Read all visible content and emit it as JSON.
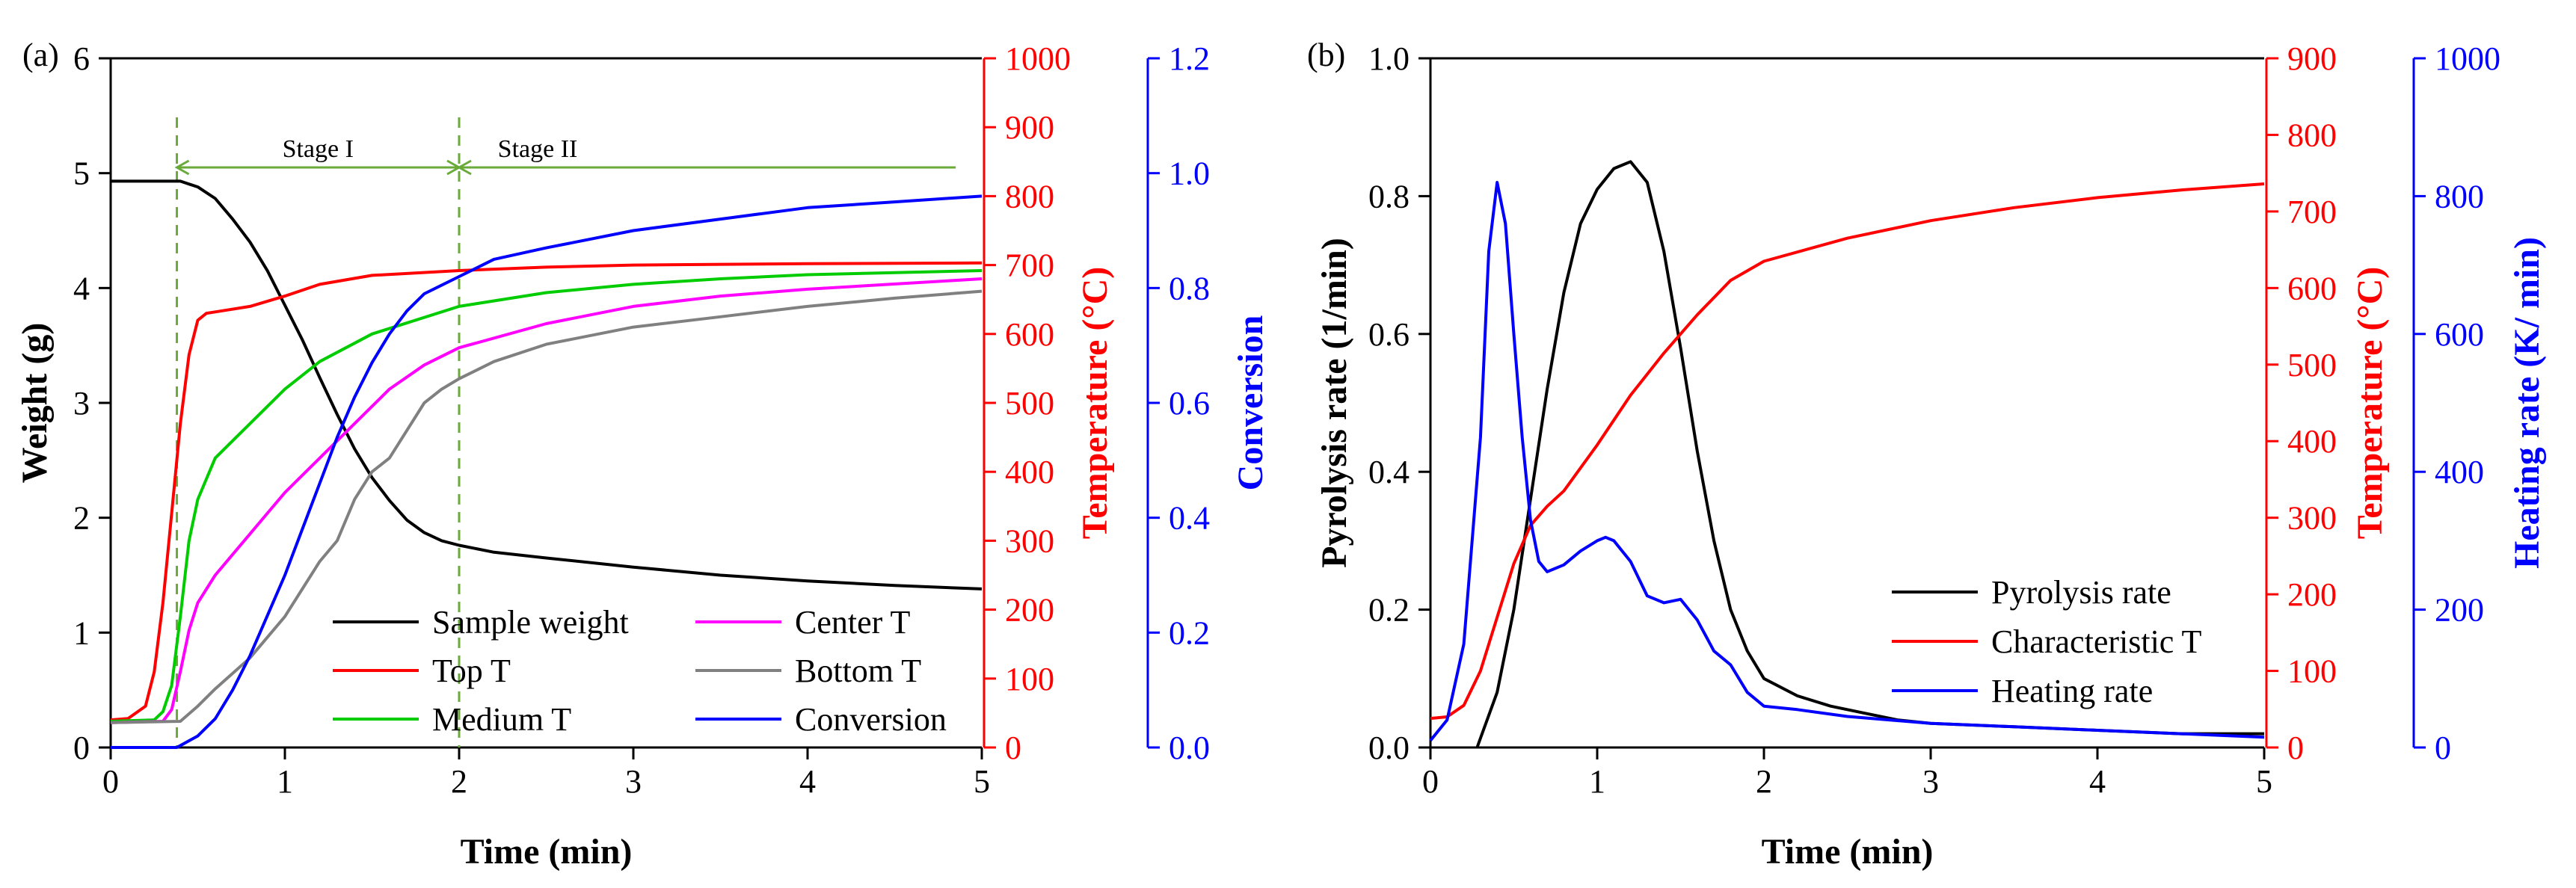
{
  "colors": {
    "black": "#000000",
    "red": "#ff0000",
    "blue": "#0000ff",
    "green": "#00cc00",
    "magenta": "#ff00ff",
    "gray": "#808080",
    "stage_green": "#6aaa3a"
  },
  "chart_data": [
    {
      "type": "line",
      "panel_label": "(a)",
      "xlabel": "Time (min)",
      "xlim": [
        0,
        5
      ],
      "xticks": [
        0,
        1,
        2,
        3,
        4,
        5
      ],
      "axes": {
        "left": {
          "label": "Weight (g)",
          "lim": [
            0,
            6
          ],
          "ticks": [
            0,
            1,
            2,
            3,
            4,
            5,
            6
          ],
          "color": "#000000"
        },
        "right1": {
          "label": "Temperature (°C)",
          "lim": [
            0,
            1000
          ],
          "ticks": [
            0,
            100,
            200,
            300,
            400,
            500,
            600,
            700,
            800,
            900,
            1000
          ],
          "color": "#ff0000"
        },
        "right2": {
          "label": "Conversion",
          "lim": [
            0,
            1.2
          ],
          "ticks": [
            "0.0",
            "0.2",
            "0.4",
            "0.6",
            "0.8",
            "1.0",
            "1.2"
          ],
          "color": "#0000ff"
        }
      },
      "stage_lines_x": [
        0.38,
        2.0
      ],
      "stage_labels": [
        "Stage I",
        "Stage II"
      ],
      "stage_arrow_end_x": 4.85,
      "series": [
        {
          "name": "Sample weight",
          "axis": "left",
          "color": "#000000",
          "x": [
            0,
            0.2,
            0.4,
            0.5,
            0.6,
            0.7,
            0.8,
            0.9,
            1.0,
            1.1,
            1.2,
            1.3,
            1.4,
            1.5,
            1.6,
            1.7,
            1.8,
            1.9,
            2.0,
            2.2,
            2.5,
            3.0,
            3.5,
            4.0,
            4.5,
            5.0
          ],
          "y": [
            4.93,
            4.93,
            4.93,
            4.88,
            4.78,
            4.6,
            4.4,
            4.15,
            3.85,
            3.55,
            3.22,
            2.9,
            2.6,
            2.35,
            2.15,
            1.98,
            1.87,
            1.8,
            1.76,
            1.7,
            1.65,
            1.57,
            1.5,
            1.45,
            1.41,
            1.38
          ]
        },
        {
          "name": "Top T",
          "axis": "right1",
          "color": "#ff0000",
          "x": [
            0,
            0.1,
            0.2,
            0.25,
            0.3,
            0.35,
            0.4,
            0.45,
            0.5,
            0.55,
            0.6,
            0.8,
            1.0,
            1.2,
            1.5,
            2.0,
            2.5,
            3.0,
            4.0,
            5.0
          ],
          "y": [
            40,
            42,
            60,
            110,
            210,
            340,
            470,
            570,
            620,
            630,
            632,
            640,
            655,
            672,
            685,
            692,
            697,
            700,
            702,
            703
          ]
        },
        {
          "name": "Medium T",
          "axis": "right1",
          "color": "#00cc00",
          "x": [
            0,
            0.25,
            0.3,
            0.35,
            0.4,
            0.45,
            0.5,
            0.6,
            0.7,
            0.8,
            1.0,
            1.2,
            1.5,
            2.0,
            2.5,
            3.0,
            3.5,
            4.0,
            5.0
          ],
          "y": [
            38,
            40,
            52,
            90,
            190,
            300,
            360,
            420,
            445,
            470,
            520,
            560,
            600,
            640,
            660,
            672,
            680,
            686,
            692
          ]
        },
        {
          "name": "Center T",
          "axis": "right1",
          "color": "#ff00ff",
          "x": [
            0,
            0.3,
            0.35,
            0.4,
            0.45,
            0.5,
            0.6,
            0.7,
            0.8,
            0.9,
            1.0,
            1.2,
            1.4,
            1.6,
            1.8,
            2.0,
            2.5,
            3.0,
            3.5,
            4.0,
            5.0
          ],
          "y": [
            36,
            38,
            55,
            110,
            170,
            210,
            250,
            280,
            310,
            340,
            370,
            420,
            470,
            520,
            555,
            580,
            615,
            640,
            655,
            665,
            680
          ]
        },
        {
          "name": "Bottom T",
          "axis": "right1",
          "color": "#808080",
          "x": [
            0,
            0.4,
            0.5,
            0.6,
            0.8,
            1.0,
            1.2,
            1.3,
            1.4,
            1.5,
            1.6,
            1.7,
            1.8,
            1.9,
            2.0,
            2.2,
            2.5,
            3.0,
            3.5,
            4.0,
            4.5,
            5.0
          ],
          "y": [
            36,
            38,
            60,
            85,
            130,
            190,
            270,
            300,
            360,
            400,
            420,
            460,
            500,
            520,
            535,
            560,
            585,
            610,
            625,
            640,
            652,
            662
          ]
        },
        {
          "name": "Conversion",
          "axis": "right2",
          "color": "#0000ff",
          "x": [
            0,
            0.38,
            0.5,
            0.6,
            0.7,
            0.8,
            0.9,
            1.0,
            1.1,
            1.2,
            1.3,
            1.4,
            1.5,
            1.6,
            1.7,
            1.8,
            2.0,
            2.2,
            2.5,
            3.0,
            3.5,
            4.0,
            4.5,
            5.0
          ],
          "y": [
            0,
            0,
            0.02,
            0.05,
            0.1,
            0.16,
            0.23,
            0.3,
            0.38,
            0.46,
            0.54,
            0.61,
            0.67,
            0.72,
            0.76,
            0.79,
            0.82,
            0.85,
            0.87,
            0.9,
            0.92,
            0.94,
            0.95,
            0.96
          ]
        }
      ],
      "legend": {
        "placement": "bottom-right",
        "entries": [
          {
            "name": "Sample weight",
            "color": "#000000"
          },
          {
            "name": "Center T",
            "color": "#ff00ff"
          },
          {
            "name": "Top T",
            "color": "#ff0000"
          },
          {
            "name": "Bottom T",
            "color": "#808080"
          },
          {
            "name": "Medium T",
            "color": "#00cc00"
          },
          {
            "name": "Conversion",
            "color": "#0000ff"
          }
        ]
      }
    },
    {
      "type": "line",
      "panel_label": "(b)",
      "xlabel": "Time (min)",
      "xlim": [
        0,
        5
      ],
      "xticks": [
        0,
        1,
        2,
        3,
        4,
        5
      ],
      "axes": {
        "left": {
          "label": "Pyrolysis rate (1/min)",
          "lim": [
            0,
            1.0
          ],
          "ticks": [
            "0.0",
            "0.2",
            "0.4",
            "0.6",
            "0.8",
            "1.0"
          ],
          "color": "#000000"
        },
        "right1": {
          "label": "Temperature (°C)",
          "lim": [
            0,
            900
          ],
          "ticks": [
            0,
            100,
            200,
            300,
            400,
            500,
            600,
            700,
            800,
            900
          ],
          "color": "#ff0000"
        },
        "right2": {
          "label": "Heating rate (K/ min)",
          "lim": [
            0,
            1000
          ],
          "ticks": [
            0,
            200,
            400,
            600,
            800,
            1000
          ],
          "color": "#0000ff"
        }
      },
      "series": [
        {
          "name": "Pyrolysis rate",
          "axis": "left",
          "color": "#000000",
          "x": [
            0.28,
            0.4,
            0.5,
            0.6,
            0.7,
            0.8,
            0.9,
            1.0,
            1.1,
            1.2,
            1.3,
            1.4,
            1.5,
            1.6,
            1.7,
            1.8,
            1.9,
            2.0,
            2.2,
            2.4,
            2.6,
            2.8,
            3.0,
            3.5,
            4.0,
            4.5,
            5.0
          ],
          "y": [
            0,
            0.08,
            0.2,
            0.36,
            0.52,
            0.66,
            0.76,
            0.81,
            0.84,
            0.85,
            0.82,
            0.72,
            0.58,
            0.43,
            0.3,
            0.2,
            0.14,
            0.1,
            0.075,
            0.06,
            0.05,
            0.04,
            0.035,
            0.03,
            0.025,
            0.02,
            0.02
          ]
        },
        {
          "name": "Characteristic T",
          "axis": "right1",
          "color": "#ff0000",
          "x": [
            0,
            0.1,
            0.2,
            0.3,
            0.4,
            0.5,
            0.6,
            0.7,
            0.8,
            1.0,
            1.2,
            1.4,
            1.6,
            1.8,
            2.0,
            2.5,
            3.0,
            3.5,
            4.0,
            4.5,
            5.0
          ],
          "y": [
            38,
            40,
            55,
            100,
            170,
            240,
            290,
            315,
            335,
            395,
            460,
            515,
            565,
            610,
            635,
            665,
            688,
            705,
            718,
            728,
            736
          ]
        },
        {
          "name": "Heating rate",
          "axis": "right2",
          "color": "#0000ff",
          "x": [
            0,
            0.1,
            0.2,
            0.3,
            0.35,
            0.4,
            0.45,
            0.5,
            0.55,
            0.6,
            0.65,
            0.7,
            0.8,
            0.9,
            1.0,
            1.05,
            1.1,
            1.2,
            1.3,
            1.4,
            1.5,
            1.6,
            1.7,
            1.8,
            1.9,
            2.0,
            2.2,
            2.5,
            3.0,
            3.5,
            4.0,
            4.5,
            5.0
          ],
          "y": [
            10,
            40,
            150,
            450,
            720,
            820,
            760,
            600,
            450,
            330,
            270,
            255,
            265,
            285,
            300,
            305,
            300,
            270,
            220,
            210,
            215,
            185,
            140,
            120,
            80,
            60,
            55,
            45,
            35,
            30,
            25,
            20,
            15
          ]
        }
      ],
      "legend": {
        "placement": "bottom-right",
        "entries": [
          {
            "name": "Pyrolysis rate",
            "color": "#000000"
          },
          {
            "name": "Characteristic T",
            "color": "#ff0000"
          },
          {
            "name": "Heating rate",
            "color": "#0000ff"
          }
        ]
      }
    }
  ]
}
